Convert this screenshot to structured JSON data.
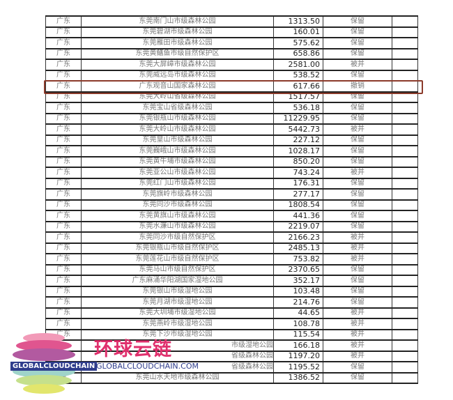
{
  "rows": [
    {
      "province": "广东",
      "name": "东莞南门山市级森林公园",
      "area": "1313.50",
      "status": "保留"
    },
    {
      "province": "广东",
      "name": "东莞碧湖市级森林公园",
      "area": "160.01",
      "status": "保留"
    },
    {
      "province": "广东",
      "name": "东莞雁田市级森林公园",
      "area": "575.62",
      "status": "保留"
    },
    {
      "province": "广东",
      "name": "东莞黄鳝鱼市级自然保护区",
      "area": "658.86",
      "status": "保留"
    },
    {
      "province": "广东",
      "name": "东莞大屏嶂市级森林公园",
      "area": "2581.00",
      "status": "被并"
    },
    {
      "province": "广东",
      "name": "东莞威远岛市级森林公园",
      "area": "538.52",
      "status": "保留"
    },
    {
      "province": "广东",
      "name": "广东观音山国家森林公园",
      "area": "617.66",
      "status": "撤销"
    },
    {
      "province": "广东",
      "name": "东莞大岭山省级森林公园",
      "area": "1517.57",
      "status": "保留"
    },
    {
      "province": "广东",
      "name": "东莞宝山省级森林公园",
      "area": "536.18",
      "status": "保留"
    },
    {
      "province": "广东",
      "name": "东莞银瓶山市级森林公园",
      "area": "11229.95",
      "status": "保留"
    },
    {
      "province": "广东",
      "name": "东莞大岭山市级森林公园",
      "area": "5442.73",
      "status": "被并"
    },
    {
      "province": "广东",
      "name": "东莞皇山市级森林公园",
      "area": "227.12",
      "status": "保留"
    },
    {
      "province": "广东",
      "name": "东莞巍峨山市级森林公园",
      "area": "1028.17",
      "status": "保留"
    },
    {
      "province": "广东",
      "name": "东莞黄牛埔市级森林公园",
      "area": "850.20",
      "status": "保留"
    },
    {
      "province": "广东",
      "name": "东莞亚公山市级森林公园",
      "area": "743.24",
      "status": "被并"
    },
    {
      "province": "广东",
      "name": "东莞红门山市级森林公园",
      "area": "176.31",
      "status": "保留"
    },
    {
      "province": "广东",
      "name": "东莞旗岭市级森林公园",
      "area": "277.17",
      "status": "保留"
    },
    {
      "province": "广东",
      "name": "东莞同沙市级森林公园",
      "area": "1808.54",
      "status": "保留"
    },
    {
      "province": "广东",
      "name": "东莞黄旗山市级森林公园",
      "area": "441.36",
      "status": "保留"
    },
    {
      "province": "广东",
      "name": "东莞水濂山市级森林公园",
      "area": "2219.07",
      "status": "保留"
    },
    {
      "province": "广东",
      "name": "东莞同沙市级自然保护区",
      "area": "2166.23",
      "status": "被并"
    },
    {
      "province": "广东",
      "name": "东莞银瓶山市级自然保护区",
      "area": "2485.13",
      "status": "被并"
    },
    {
      "province": "广东",
      "name": "东莞莲花山市级自然保护区",
      "area": "753.82",
      "status": "被并"
    },
    {
      "province": "广东",
      "name": "东莞马山市级自然保护区",
      "area": "2370.65",
      "status": "保留"
    },
    {
      "province": "广东",
      "name": "广东麻涌华阳湖国家湿地公园",
      "area": "352.17",
      "status": "保留"
    },
    {
      "province": "广东",
      "name": "东莞银山市级湿地公园",
      "area": "103.48",
      "status": "保留"
    },
    {
      "province": "广东",
      "name": "东莞月湖市级湿地公园",
      "area": "214.76",
      "status": "保留"
    },
    {
      "province": "广东",
      "name": "东莞大圳埔市级湿地公园",
      "area": "44.65",
      "status": "被并"
    },
    {
      "province": "广东",
      "name": "东莞燕岭市级湿地公园",
      "area": "108.78",
      "status": "被并"
    },
    {
      "province": "广东",
      "name": "东莞下沙市级湿地公园",
      "area": "115.54",
      "status": "被并"
    },
    {
      "province": "",
      "name": "市级湿地公园",
      "area": "166.18",
      "status": "被并"
    },
    {
      "province": "",
      "name": "省级森林公园",
      "area": "1197.20",
      "status": "被并"
    },
    {
      "province": "",
      "name": "省级森林公园",
      "area": "1195.52",
      "status": "保留"
    },
    {
      "province": "东",
      "name": "东莞山水天地市级森林公园",
      "area": "1386.52",
      "status": "保留"
    }
  ],
  "highlight_color": "#8b3a2a",
  "watermark": {
    "cn": "环球云链",
    "band": "GLOBALCLOUDCHAIN",
    "url": "GLOBALCLOUDCHAIN.COM"
  }
}
